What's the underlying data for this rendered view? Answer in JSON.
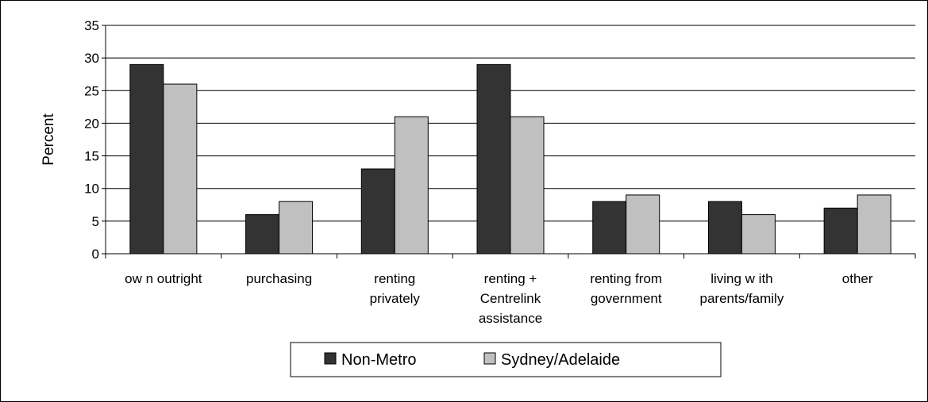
{
  "chart_data": {
    "type": "bar",
    "title": "",
    "xlabel": "",
    "ylabel": "Percent",
    "ylim": [
      0,
      35
    ],
    "yticks": [
      0,
      5,
      10,
      15,
      20,
      25,
      30,
      35
    ],
    "grid": true,
    "legend_position": "bottom",
    "categories": [
      [
        "ow n outright"
      ],
      [
        "purchasing"
      ],
      [
        "renting",
        "privately"
      ],
      [
        "renting +",
        "Centrelink",
        "assistance"
      ],
      [
        "renting from",
        "government"
      ],
      [
        "living w ith",
        "parents/family"
      ],
      [
        "other"
      ]
    ],
    "series": [
      {
        "name": "Non-Metro",
        "color": "#333333",
        "values": [
          29,
          6,
          13,
          29,
          8,
          8,
          7
        ]
      },
      {
        "name": "Sydney/Adelaide",
        "color": "#c0c0c0",
        "values": [
          26,
          8,
          21,
          21,
          9,
          6,
          9
        ]
      }
    ]
  }
}
